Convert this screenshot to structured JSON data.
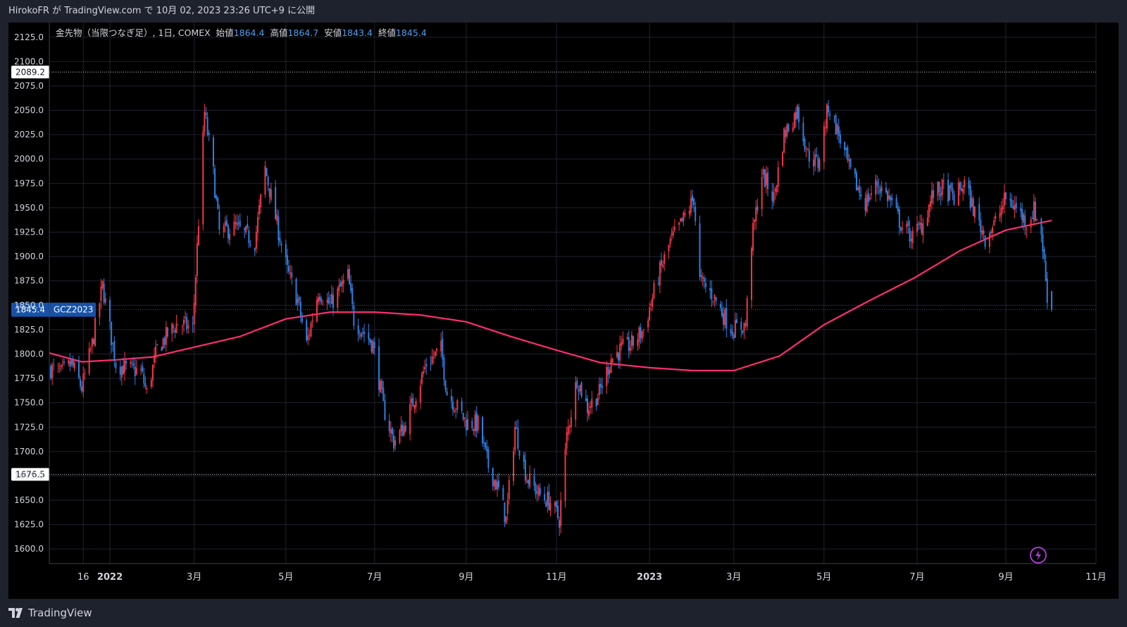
{
  "header": {
    "published_text": "HirokoFR が TradingView.com で 10月 02, 2023 23:26 UTC+9 に公開"
  },
  "legend": {
    "symbol_text": "金先物（当限つなぎ足）, 1日, COMEX",
    "open_label": "始値",
    "open_value": "1864.4",
    "high_label": "高値",
    "high_value": "1864.7",
    "low_label": "安値",
    "low_value": "1843.4",
    "close_label": "終値",
    "close_value": "1845.4"
  },
  "footer": {
    "brand": "TradingView"
  },
  "colors": {
    "up": "#f23645",
    "down": "#2f7fe0",
    "ma": "#ff2d6f",
    "grid": "#1f2330",
    "price_tag": "#1652a8",
    "text": "#d1d4dc",
    "lightning": "#b53fe0"
  },
  "chart_data": {
    "type": "candlestick",
    "title": "金先物（当限つなぎ足）, 1日, COMEX",
    "ylim": [
      1585,
      2140
    ],
    "y_ticks": [
      "2125.0",
      "2100.0",
      "2075.0",
      "2050.0",
      "2025.0",
      "2000.0",
      "1975.0",
      "1950.0",
      "1925.0",
      "1900.0",
      "1875.0",
      "1850.0",
      "1825.0",
      "1800.0",
      "1775.0",
      "1750.0",
      "1725.0",
      "1700.0",
      "1675.0",
      "1650.0",
      "1625.0",
      "1600.0"
    ],
    "x_ticks": [
      {
        "label": "16",
        "date": "2021-12-16"
      },
      {
        "label": "2022",
        "date": "2022-01-03"
      },
      {
        "label": "3月",
        "date": "2022-03-01"
      },
      {
        "label": "5月",
        "date": "2022-05-02"
      },
      {
        "label": "7月",
        "date": "2022-07-01"
      },
      {
        "label": "9月",
        "date": "2022-09-01"
      },
      {
        "label": "11月",
        "date": "2022-11-01"
      },
      {
        "label": "2023",
        "date": "2023-01-03"
      },
      {
        "label": "3月",
        "date": "2023-03-01"
      },
      {
        "label": "5月",
        "date": "2023-05-01"
      },
      {
        "label": "7月",
        "date": "2023-07-03"
      },
      {
        "label": "9月",
        "date": "2023-09-01"
      },
      {
        "label": "11月",
        "date": "2023-11-01"
      }
    ],
    "x_range": [
      "2021-11-23",
      "2023-11-01"
    ],
    "price_levels": [
      {
        "value": 2089.2,
        "label": "2089.2",
        "style": "dotted"
      },
      {
        "value": 1676.5,
        "label": "1676.5",
        "style": "dotted"
      }
    ],
    "last_price": {
      "value": 1845.4,
      "label": "1845.4",
      "symbol": "GCZ2023"
    },
    "series": [
      {
        "kind": "close_path",
        "points": [
          [
            "2021-11-24",
            1785
          ],
          [
            "2021-12-01",
            1780
          ],
          [
            "2021-12-08",
            1790
          ],
          [
            "2021-12-15",
            1765
          ],
          [
            "2021-12-22",
            1810
          ],
          [
            "2021-12-29",
            1870
          ],
          [
            "2022-01-07",
            1790
          ],
          [
            "2022-01-14",
            1785
          ],
          [
            "2022-01-24",
            1782
          ],
          [
            "2022-01-28",
            1760
          ],
          [
            "2022-02-04",
            1805
          ],
          [
            "2022-02-11",
            1820
          ],
          [
            "2022-02-18",
            1832
          ],
          [
            "2022-02-28",
            1826
          ],
          [
            "2022-03-08",
            2048
          ],
          [
            "2022-03-14",
            1985
          ],
          [
            "2022-03-18",
            1925
          ],
          [
            "2022-03-29",
            1930
          ],
          [
            "2022-04-11",
            1915
          ],
          [
            "2022-04-18",
            1990
          ],
          [
            "2022-04-25",
            1940
          ],
          [
            "2022-05-03",
            1885
          ],
          [
            "2022-05-10",
            1855
          ],
          [
            "2022-05-16",
            1810
          ],
          [
            "2022-05-24",
            1865
          ],
          [
            "2022-06-01",
            1850
          ],
          [
            "2022-06-13",
            1880
          ],
          [
            "2022-06-17",
            1835
          ],
          [
            "2022-06-30",
            1810
          ],
          [
            "2022-07-07",
            1745
          ],
          [
            "2022-07-14",
            1710
          ],
          [
            "2022-07-21",
            1725
          ],
          [
            "2022-07-28",
            1755
          ],
          [
            "2022-08-05",
            1790
          ],
          [
            "2022-08-15",
            1805
          ],
          [
            "2022-08-19",
            1760
          ],
          [
            "2022-08-26",
            1745
          ],
          [
            "2022-09-01",
            1730
          ],
          [
            "2022-09-09",
            1728
          ],
          [
            "2022-09-16",
            1685
          ],
          [
            "2022-09-23",
            1660
          ],
          [
            "2022-09-28",
            1630
          ],
          [
            "2022-10-04",
            1725
          ],
          [
            "2022-10-12",
            1673
          ],
          [
            "2022-10-21",
            1655
          ],
          [
            "2022-10-28",
            1648
          ],
          [
            "2022-11-03",
            1630
          ],
          [
            "2022-11-08",
            1715
          ],
          [
            "2022-11-15",
            1775
          ],
          [
            "2022-11-22",
            1745
          ],
          [
            "2022-11-30",
            1760
          ],
          [
            "2022-12-08",
            1795
          ],
          [
            "2022-12-15",
            1805
          ],
          [
            "2022-12-22",
            1810
          ],
          [
            "2022-12-30",
            1825
          ],
          [
            "2023-01-09",
            1880
          ],
          [
            "2023-01-17",
            1915
          ],
          [
            "2023-01-25",
            1935
          ],
          [
            "2023-02-02",
            1960
          ],
          [
            "2023-02-06",
            1875
          ],
          [
            "2023-02-15",
            1860
          ],
          [
            "2023-02-22",
            1840
          ],
          [
            "2023-02-28",
            1825
          ],
          [
            "2023-03-09",
            1830
          ],
          [
            "2023-03-13",
            1915
          ],
          [
            "2023-03-20",
            1985
          ],
          [
            "2023-03-28",
            1960
          ],
          [
            "2023-04-04",
            2025
          ],
          [
            "2023-04-13",
            2050
          ],
          [
            "2023-04-20",
            2005
          ],
          [
            "2023-04-27",
            1995
          ],
          [
            "2023-05-04",
            2055
          ],
          [
            "2023-05-11",
            2025
          ],
          [
            "2023-05-19",
            1985
          ],
          [
            "2023-05-29",
            1955
          ],
          [
            "2023-06-06",
            1975
          ],
          [
            "2023-06-14",
            1960
          ],
          [
            "2023-06-23",
            1930
          ],
          [
            "2023-06-30",
            1920
          ],
          [
            "2023-07-07",
            1935
          ],
          [
            "2023-07-14",
            1965
          ],
          [
            "2023-07-21",
            1970
          ],
          [
            "2023-07-28",
            1960
          ],
          [
            "2023-08-04",
            1975
          ],
          [
            "2023-08-11",
            1945
          ],
          [
            "2023-08-18",
            1920
          ],
          [
            "2023-08-25",
            1935
          ],
          [
            "2023-09-01",
            1960
          ],
          [
            "2023-09-08",
            1950
          ],
          [
            "2023-09-15",
            1935
          ],
          [
            "2023-09-20",
            1948
          ],
          [
            "2023-09-25",
            1925
          ],
          [
            "2023-09-29",
            1860
          ],
          [
            "2023-10-02",
            1845.4
          ]
        ]
      },
      {
        "kind": "moving_average",
        "points": [
          [
            "2021-11-23",
            1801
          ],
          [
            "2021-12-15",
            1792
          ],
          [
            "2022-01-07",
            1794
          ],
          [
            "2022-02-01",
            1797
          ],
          [
            "2022-03-01",
            1807
          ],
          [
            "2022-04-01",
            1818
          ],
          [
            "2022-05-02",
            1836
          ],
          [
            "2022-06-01",
            1843
          ],
          [
            "2022-07-01",
            1843
          ],
          [
            "2022-08-01",
            1840
          ],
          [
            "2022-09-01",
            1833
          ],
          [
            "2022-10-01",
            1818
          ],
          [
            "2022-11-01",
            1804
          ],
          [
            "2022-12-01",
            1791
          ],
          [
            "2023-01-03",
            1786
          ],
          [
            "2023-02-01",
            1783
          ],
          [
            "2023-03-01",
            1783
          ],
          [
            "2023-04-01",
            1798
          ],
          [
            "2023-05-01",
            1830
          ],
          [
            "2023-06-01",
            1855
          ],
          [
            "2023-07-01",
            1878
          ],
          [
            "2023-08-01",
            1906
          ],
          [
            "2023-09-01",
            1927
          ],
          [
            "2023-10-02",
            1937
          ]
        ]
      }
    ]
  }
}
